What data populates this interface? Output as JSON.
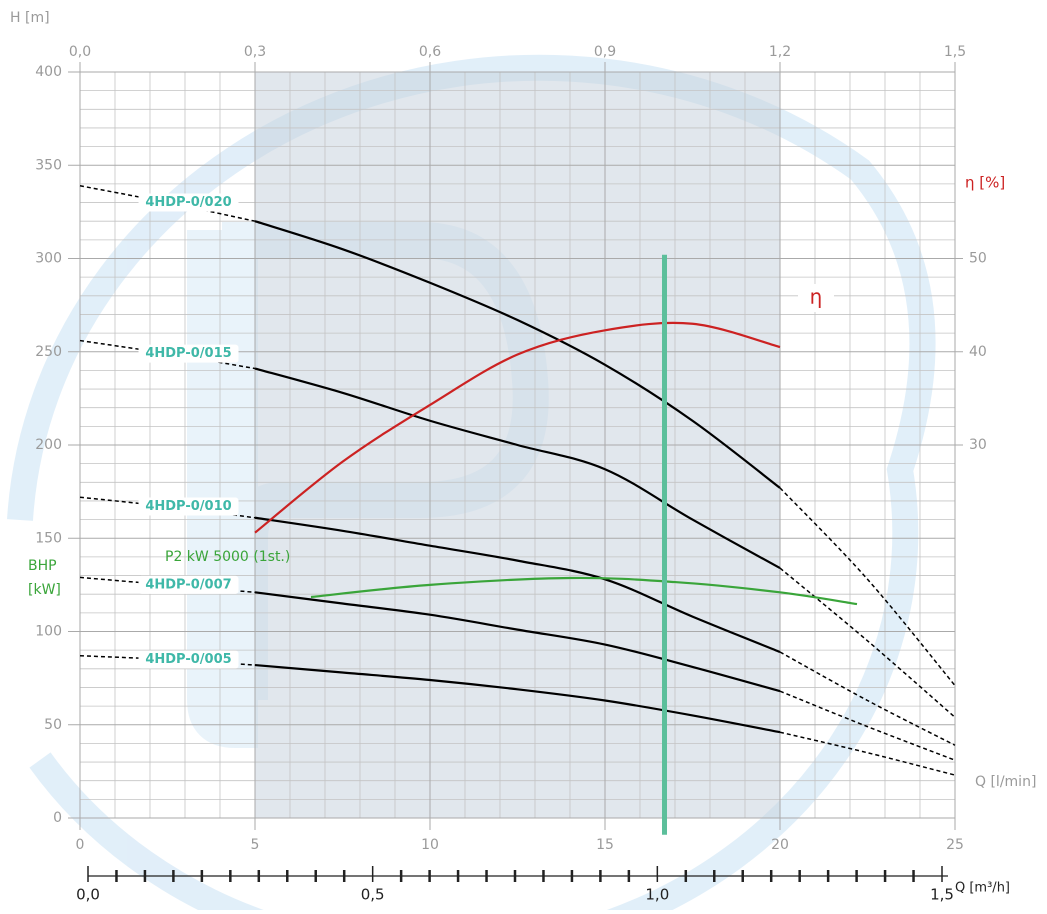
{
  "chart_data": {
    "type": "line",
    "y_label": "H [m]",
    "x_label": "Q [l/min]",
    "y2_label": "η [%]",
    "power_label": "BHP [kW]",
    "xlim": [
      0,
      25
    ],
    "xticks": [
      0,
      5,
      10,
      15,
      20,
      25
    ],
    "ylim": [
      0,
      400
    ],
    "yticks": [
      0,
      50,
      100,
      150,
      200,
      250,
      300,
      350,
      400
    ],
    "y2lim": [
      -10,
      70
    ],
    "y2ticks": [
      30,
      40,
      50
    ],
    "grid": true,
    "shaded_range": [
      5,
      20
    ],
    "top_axis": {
      "lim": [
        0,
        1.5
      ],
      "ticks": [
        {
          "value": 0,
          "label": "0,0"
        },
        {
          "value": 0.3,
          "label": "0,3"
        },
        {
          "value": 0.6,
          "label": "0,6"
        },
        {
          "value": 0.9,
          "label": "0,9"
        },
        {
          "value": 1.2,
          "label": "1,2"
        },
        {
          "value": 1.5,
          "label": "1,5"
        }
      ]
    },
    "bottom_axis": {
      "label": "Q [m³/h]",
      "lim": [
        0,
        1.5
      ],
      "ticks": [
        {
          "value": 0,
          "label": "0,0"
        },
        {
          "value": 0.5,
          "label": "0,5"
        },
        {
          "value": 1,
          "label": "1,0"
        },
        {
          "value": 1.5,
          "label": "1,5"
        }
      ]
    },
    "x": [
      0,
      2.5,
      5,
      7.5,
      10,
      12.5,
      15,
      17.5,
      20,
      22.5,
      25
    ],
    "series": [
      {
        "name": "4HDP-0/020",
        "color": "#000000",
        "values": [
          339,
          330,
          320,
          305,
          287,
          267,
          243,
          213,
          177,
          128,
          71
        ]
      },
      {
        "name": "4HDP-0/015",
        "color": "#000000",
        "values": [
          256,
          249,
          241,
          228,
          213,
          200,
          187,
          160,
          134,
          95,
          54
        ]
      },
      {
        "name": "4HDP-0/010",
        "color": "#000000",
        "values": [
          172,
          167,
          161,
          154,
          146,
          138,
          128,
          108,
          89,
          63,
          39
        ]
      },
      {
        "name": "4HDP-0/007",
        "color": "#000000",
        "values": [
          129,
          125,
          121,
          115,
          109,
          101,
          93,
          81,
          68,
          49,
          31
        ]
      },
      {
        "name": "4HDP-0/005",
        "color": "#000000",
        "values": [
          87,
          85,
          82,
          78,
          74,
          69,
          63,
          55,
          46,
          35,
          23
        ]
      }
    ],
    "efficiency": {
      "name": "η",
      "color": "#cc2222",
      "axis": "y2",
      "x": [
        5,
        7.5,
        10,
        12.5,
        15,
        17.5,
        20
      ],
      "values": [
        20.6,
        28.2,
        34.3,
        39.7,
        42.3,
        43,
        40.5
      ]
    },
    "power": {
      "name": "P2 kW 5000 (1st.)",
      "color": "#3aa53a",
      "x": [
        6.6,
        10,
        14,
        17,
        20,
        22.2
      ],
      "values": [
        118.5,
        125,
        128.7,
        126.5,
        121,
        114.7
      ]
    },
    "reference_line": {
      "x": 16.7,
      "h_range": [
        -9,
        302
      ],
      "color": "#5cbf9b"
    }
  }
}
